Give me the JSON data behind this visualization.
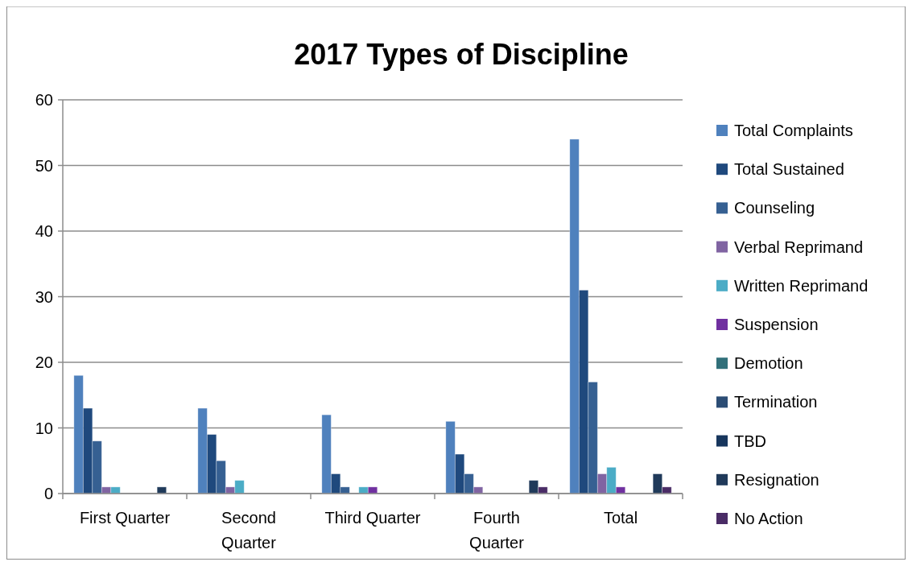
{
  "chart_data": {
    "type": "bar",
    "title": "2017 Types of Discipline",
    "categories": [
      "First Quarter",
      "Second Quarter",
      "Third Quarter",
      "Fourth Quarter",
      "Total"
    ],
    "series": [
      {
        "name": "Total Complaints",
        "color": "#4f81bd",
        "values": [
          18,
          13,
          12,
          11,
          54
        ]
      },
      {
        "name": "Total Sustained",
        "color": "#1f497d",
        "values": [
          13,
          9,
          3,
          6,
          31
        ]
      },
      {
        "name": "Counseling",
        "color": "#366092",
        "values": [
          8,
          5,
          1,
          3,
          17
        ]
      },
      {
        "name": "Verbal Reprimand",
        "color": "#8064a2",
        "values": [
          1,
          1,
          0,
          1,
          3
        ]
      },
      {
        "name": "Written Reprimand",
        "color": "#4bacc6",
        "values": [
          1,
          2,
          1,
          0,
          4
        ]
      },
      {
        "name": "Suspension",
        "color": "#7030a0",
        "values": [
          0,
          0,
          1,
          0,
          1
        ]
      },
      {
        "name": "Demotion",
        "color": "#31707a",
        "values": [
          0,
          0,
          0,
          0,
          0
        ]
      },
      {
        "name": "Termination",
        "color": "#2c4d75",
        "values": [
          0,
          0,
          0,
          0,
          0
        ]
      },
      {
        "name": "TBD",
        "color": "#17365d",
        "values": [
          0,
          0,
          0,
          0,
          0
        ]
      },
      {
        "name": "Resignation",
        "color": "#203a5a",
        "values": [
          1,
          0,
          0,
          2,
          3
        ]
      },
      {
        "name": "No Action",
        "color": "#4a2c66",
        "values": [
          0,
          0,
          0,
          1,
          1
        ]
      }
    ],
    "ylim": [
      0,
      60
    ],
    "yticks": [
      0,
      10,
      20,
      30,
      40,
      50,
      60
    ],
    "grid": "y",
    "legend": "right"
  }
}
